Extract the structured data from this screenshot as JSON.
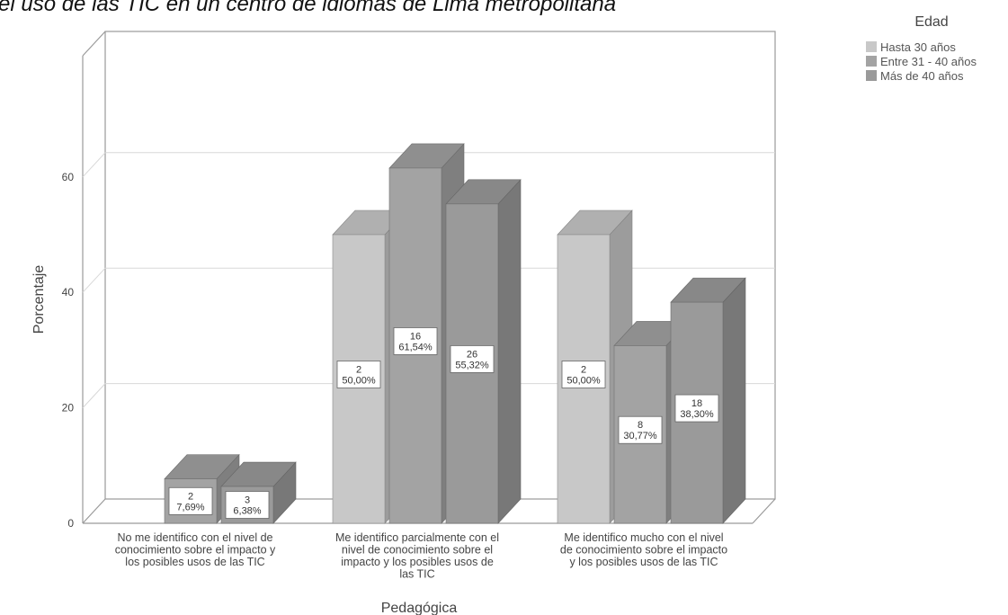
{
  "colors": {
    "series": [
      "#c8c8c8",
      "#a3a3a3",
      "#9a9a9a"
    ],
    "frame": "#9a9a9a",
    "grid": "#d8d8d8",
    "label_box_border": "#666666"
  },
  "chart_data": {
    "type": "bar",
    "title": "el uso de las TIC en un centro de idiomas de Lima metropolitana",
    "xlabel": "Pedagógica",
    "ylabel": "Porcentaje",
    "ylim": [
      0,
      70
    ],
    "yticks": [
      "0",
      "20",
      "40",
      "60"
    ],
    "grid": true,
    "legend_placement": "top-right",
    "legend_title": "Edad",
    "categories": [
      "No me identifico con el nivel de conocimiento sobre el impacto y los posibles usos de las TIC",
      "Me identifico parcialmente con el nivel de conocimiento sobre el impacto y los posibles usos de las TIC",
      "Me identifico mucho con el nivel de conocimiento sobre el impacto y los posibles usos de las TIC"
    ],
    "category_lines": [
      [
        "No me identifico con el nivel de",
        "conocimiento sobre el impacto y",
        "los posibles usos de las TIC"
      ],
      [
        "Me identifico parcialmente con el",
        "nivel de conocimiento sobre el",
        "impacto y los posibles usos de",
        "las TIC"
      ],
      [
        "Me identifico mucho con el nivel",
        "de conocimiento sobre el impacto",
        "y los posibles usos de las TIC"
      ]
    ],
    "series": [
      {
        "name": "Hasta 30 años",
        "values": [
          null,
          50.0,
          50.0
        ],
        "counts": [
          null,
          "2",
          "2"
        ],
        "labels": [
          null,
          "50,00%",
          "50,00%"
        ]
      },
      {
        "name": "Entre 31 - 40 años",
        "values": [
          7.69,
          61.54,
          30.77
        ],
        "counts": [
          "2",
          "16",
          "8"
        ],
        "labels": [
          "7,69%",
          "61,54%",
          "30,77%"
        ]
      },
      {
        "name": "Más de 40 años",
        "values": [
          6.38,
          55.32,
          38.3
        ],
        "counts": [
          "3",
          "26",
          "18"
        ],
        "labels": [
          "6,38%",
          "55,32%",
          "38,30%"
        ]
      }
    ]
  }
}
